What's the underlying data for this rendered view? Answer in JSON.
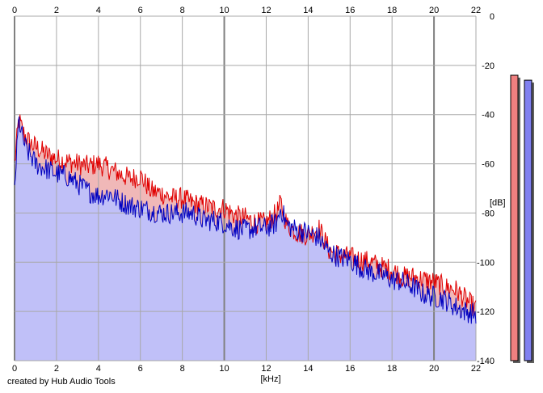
{
  "chart_data": {
    "type": "area",
    "xlabel": "[kHz]",
    "ylabel": "[dB]",
    "xlim": [
      0,
      22
    ],
    "ylim": [
      -140,
      0
    ],
    "x_ticks": [
      0,
      2,
      4,
      6,
      8,
      10,
      12,
      14,
      16,
      18,
      20,
      22
    ],
    "y_ticks": [
      0,
      -20,
      -40,
      -60,
      -80,
      -100,
      -120,
      -140
    ],
    "grid": true,
    "series": [
      {
        "color": "#e00000",
        "fill": "#f0b8b8",
        "x": [
          0,
          0.2,
          0.4,
          0.6,
          0.8,
          1,
          1.5,
          2,
          2.5,
          3,
          3.5,
          4,
          4.5,
          5,
          5.5,
          6,
          6.5,
          7,
          7.5,
          8,
          8.5,
          9,
          9.5,
          10,
          10.5,
          11,
          11.5,
          12,
          12.5,
          12.7,
          13,
          13.5,
          14,
          14.5,
          15,
          15.5,
          16,
          16.5,
          17,
          17.5,
          18,
          18.5,
          19,
          19.5,
          20,
          20.5,
          21,
          21.5,
          22
        ],
        "values": [
          -60,
          -42,
          -47,
          -50,
          -52,
          -53,
          -56,
          -58,
          -59,
          -60,
          -61,
          -60,
          -62,
          -64,
          -66,
          -65,
          -71,
          -72,
          -74,
          -74,
          -76,
          -77,
          -78,
          -78,
          -81,
          -82,
          -84,
          -84,
          -80,
          -76,
          -85,
          -88,
          -89,
          -86,
          -95,
          -97,
          -98,
          -99,
          -100,
          -102,
          -103,
          -106,
          -106,
          -107,
          -108,
          -110,
          -111,
          -115,
          -119
        ]
      },
      {
        "color": "#0000c0",
        "fill": "#c0c0f8",
        "x": [
          0,
          0.2,
          0.4,
          0.6,
          0.8,
          1,
          1.5,
          2,
          2.5,
          3,
          3.5,
          4,
          4.5,
          5,
          5.5,
          6,
          6.5,
          7,
          7.5,
          8,
          8.5,
          9,
          9.5,
          10,
          10.5,
          11,
          11.5,
          12,
          12.5,
          12.7,
          13,
          13.5,
          14,
          14.5,
          15,
          15.5,
          16,
          16.5,
          17,
          17.5,
          18,
          18.5,
          19,
          19.5,
          20,
          20.5,
          21,
          21.5,
          22
        ],
        "values": [
          -70,
          -42,
          -50,
          -55,
          -57,
          -60,
          -62,
          -64,
          -65,
          -68,
          -71,
          -73,
          -72,
          -75,
          -77,
          -78,
          -79,
          -80,
          -80,
          -80,
          -80,
          -83,
          -83,
          -84,
          -86,
          -87,
          -86,
          -86,
          -84,
          -78,
          -85,
          -87,
          -88,
          -90,
          -96,
          -98,
          -99,
          -102,
          -104,
          -105,
          -107,
          -108,
          -110,
          -113,
          -114,
          -115,
          -118,
          -120,
          -121
        ]
      }
    ]
  },
  "level_meters": [
    {
      "color": "#f08080",
      "level_db": -24
    },
    {
      "color": "#8080f0",
      "level_db": -26
    }
  ],
  "footer": {
    "credit": "created by Hub Audio Tools"
  }
}
